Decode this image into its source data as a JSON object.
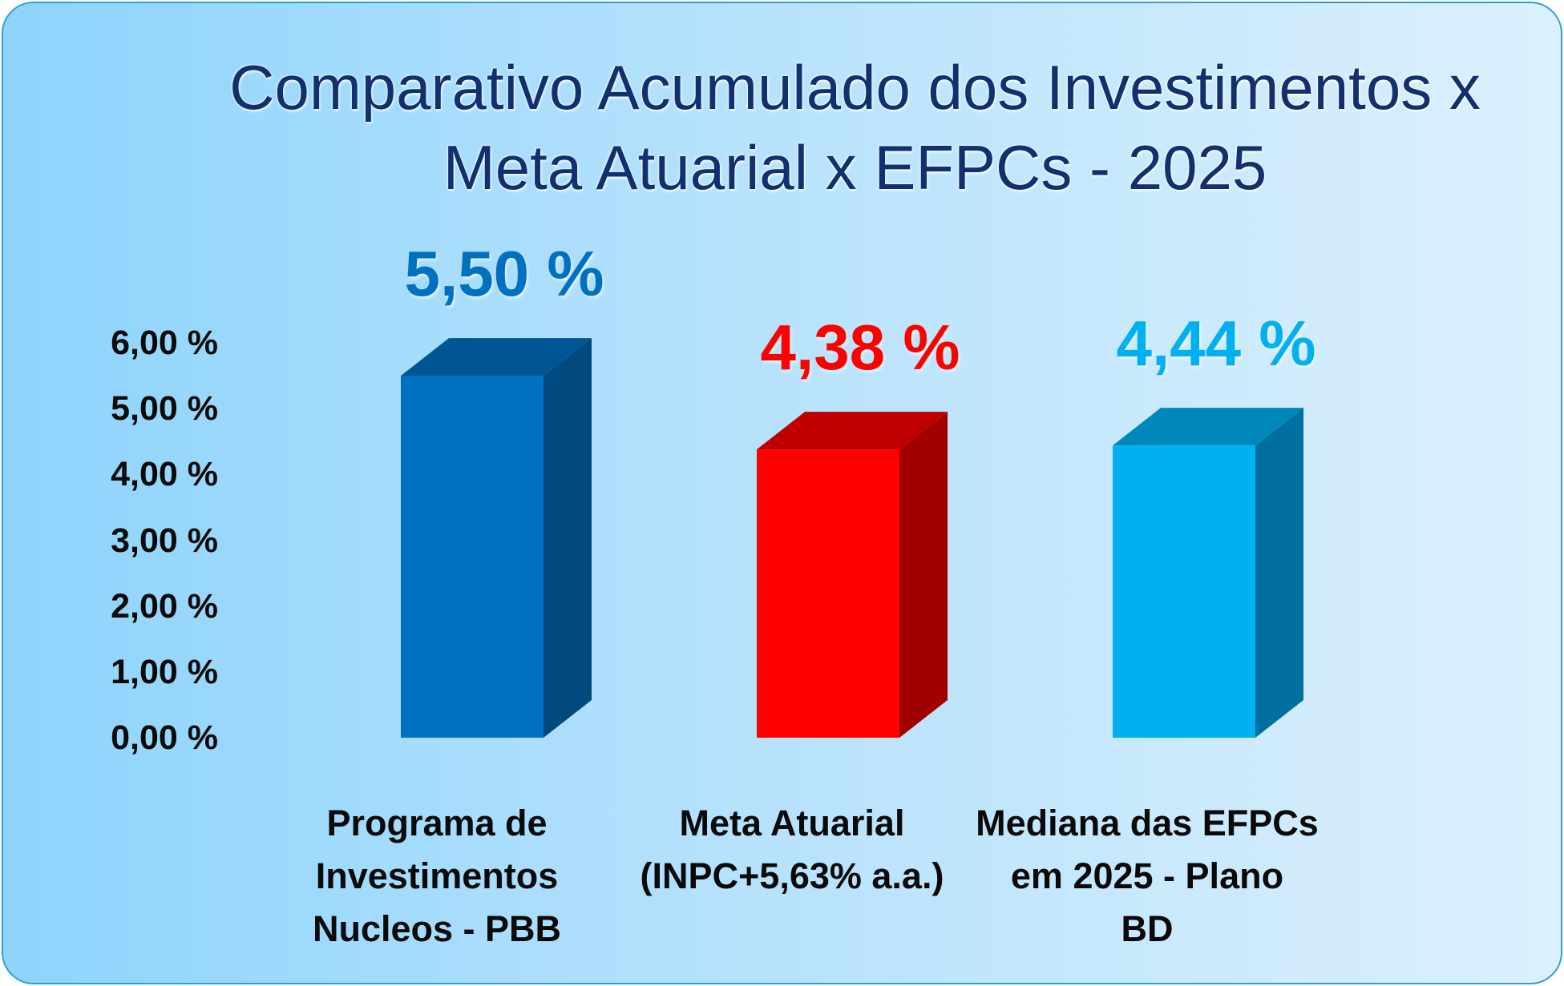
{
  "chart_data": {
    "type": "bar",
    "title_lines": [
      "Comparativo Acumulado dos Investimentos x",
      "Meta Atuarial x  EFPCs - 2025"
    ],
    "categories": [
      [
        "Programa de",
        "Investimentos",
        "Nucleos  - PBB"
      ],
      [
        "Meta Atuarial",
        "(INPC+5,63% a.a.)"
      ],
      [
        "Mediana das EFPCs",
        "em 2025 - Plano",
        "BD"
      ]
    ],
    "values": [
      5.5,
      4.38,
      4.44
    ],
    "value_labels": [
      "5,50 %",
      "4,38 %",
      "4,44 %"
    ],
    "y_ticks": [
      "0,00 %",
      "1,00 %",
      "2,00 %",
      "3,00 %",
      "4,00 %",
      "5,00 %",
      "6,00 %"
    ],
    "ylim": [
      0,
      6
    ],
    "grid": false,
    "legend": "none",
    "colors": {
      "bars_front": [
        "#0070c0",
        "#ff0000",
        "#00b0f0"
      ],
      "bars_side": [
        "#004a80",
        "#a00000",
        "#0070a0"
      ],
      "bars_top": [
        "#005594",
        "#c00000",
        "#0088bb"
      ],
      "value_labels": [
        "#0070c0",
        "#ff0000",
        "#00b0f0"
      ],
      "title": "#12306e"
    }
  }
}
